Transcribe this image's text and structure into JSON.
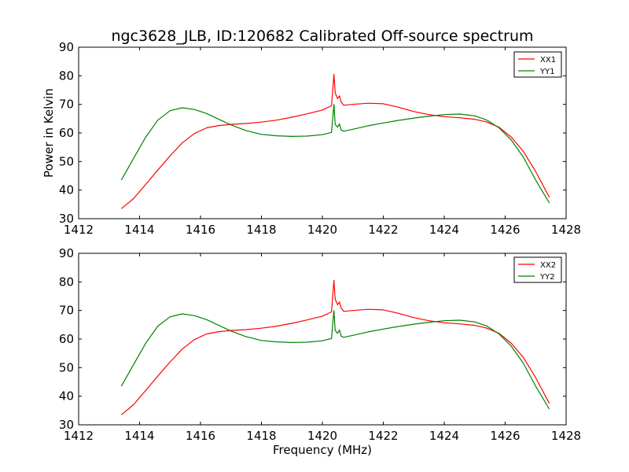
{
  "chart_data": [
    {
      "type": "line",
      "title": "ngc3628_JLB, ID:120682 Calibrated Off-source spectrum",
      "xlabel": "",
      "ylabel": "Power in Kelvin",
      "xlim": [
        1412,
        1428
      ],
      "ylim": [
        30,
        90
      ],
      "xticks": [
        "1412",
        "1414",
        "1416",
        "1418",
        "1420",
        "1422",
        "1424",
        "1426",
        "1428"
      ],
      "yticks": [
        "30",
        "40",
        "50",
        "60",
        "70",
        "80",
        "90"
      ],
      "legend": "top-right",
      "series": [
        {
          "name": "XX1",
          "color": "#ff0000",
          "x": [
            1413.4,
            1413.8,
            1414.2,
            1414.6,
            1415.0,
            1415.4,
            1415.8,
            1416.2,
            1416.6,
            1417.0,
            1417.5,
            1418.0,
            1418.5,
            1419.0,
            1419.5,
            1420.0,
            1420.3,
            1420.38,
            1420.42,
            1420.5,
            1420.56,
            1420.62,
            1420.7,
            1421.0,
            1421.5,
            1422.0,
            1422.5,
            1423.0,
            1423.5,
            1424.0,
            1424.5,
            1425.0,
            1425.4,
            1425.8,
            1426.2,
            1426.6,
            1427.0,
            1427.45
          ],
          "y": [
            33.5,
            37,
            42,
            47,
            52,
            56.5,
            59.8,
            61.8,
            62.6,
            63.0,
            63.3,
            63.8,
            64.5,
            65.5,
            66.7,
            68.0,
            69.5,
            80.5,
            74,
            72,
            73,
            70.8,
            69.7,
            70.0,
            70.4,
            70.2,
            69.0,
            67.5,
            66.4,
            65.7,
            65.3,
            64.8,
            63.8,
            62.0,
            58.5,
            53.5,
            46.5,
            37.5
          ]
        },
        {
          "name": "YY1",
          "color": "#008000",
          "x": [
            1413.4,
            1413.8,
            1414.2,
            1414.6,
            1415.0,
            1415.4,
            1415.8,
            1416.2,
            1416.6,
            1417.0,
            1417.5,
            1418.0,
            1418.5,
            1419.0,
            1419.5,
            1420.0,
            1420.3,
            1420.38,
            1420.42,
            1420.5,
            1420.56,
            1420.62,
            1420.7,
            1421.0,
            1421.5,
            1422.0,
            1422.5,
            1423.0,
            1423.5,
            1424.0,
            1424.5,
            1425.0,
            1425.4,
            1425.8,
            1426.2,
            1426.6,
            1427.0,
            1427.45
          ],
          "y": [
            43.5,
            51,
            58.5,
            64.5,
            67.8,
            68.8,
            68.2,
            66.8,
            64.8,
            62.8,
            60.8,
            59.5,
            59.0,
            58.8,
            58.9,
            59.4,
            60.2,
            70,
            63,
            62,
            63.2,
            61,
            60.6,
            61.3,
            62.5,
            63.5,
            64.4,
            65.2,
            65.9,
            66.4,
            66.6,
            66.0,
            64.5,
            61.8,
            57.5,
            51.5,
            43.5,
            35.5
          ]
        }
      ]
    },
    {
      "type": "line",
      "title": "",
      "xlabel": "Frequency (MHz)",
      "ylabel": "",
      "xlim": [
        1412,
        1428
      ],
      "ylim": [
        30,
        90
      ],
      "xticks": [
        "1412",
        "1414",
        "1416",
        "1418",
        "1420",
        "1422",
        "1424",
        "1426",
        "1428"
      ],
      "yticks": [
        "30",
        "40",
        "50",
        "60",
        "70",
        "80",
        "90"
      ],
      "legend": "top-right",
      "series": [
        {
          "name": "XX2",
          "color": "#ff0000",
          "x": [
            1413.4,
            1413.8,
            1414.2,
            1414.6,
            1415.0,
            1415.4,
            1415.8,
            1416.2,
            1416.6,
            1417.0,
            1417.5,
            1418.0,
            1418.5,
            1419.0,
            1419.5,
            1420.0,
            1420.3,
            1420.38,
            1420.42,
            1420.5,
            1420.56,
            1420.62,
            1420.7,
            1421.0,
            1421.5,
            1422.0,
            1422.5,
            1423.0,
            1423.5,
            1424.0,
            1424.5,
            1425.0,
            1425.4,
            1425.8,
            1426.2,
            1426.6,
            1427.0,
            1427.45
          ],
          "y": [
            33.5,
            37,
            42,
            47,
            52,
            56.5,
            59.8,
            61.8,
            62.6,
            63.0,
            63.3,
            63.8,
            64.5,
            65.5,
            66.7,
            68.0,
            69.5,
            80.5,
            74,
            72,
            73,
            70.8,
            69.7,
            70.0,
            70.4,
            70.2,
            69.0,
            67.5,
            66.4,
            65.7,
            65.3,
            64.8,
            63.8,
            62.0,
            58.5,
            53.5,
            46.5,
            37.5
          ]
        },
        {
          "name": "YY2",
          "color": "#008000",
          "x": [
            1413.4,
            1413.8,
            1414.2,
            1414.6,
            1415.0,
            1415.4,
            1415.8,
            1416.2,
            1416.6,
            1417.0,
            1417.5,
            1418.0,
            1418.5,
            1419.0,
            1419.5,
            1420.0,
            1420.3,
            1420.38,
            1420.42,
            1420.5,
            1420.56,
            1420.62,
            1420.7,
            1421.0,
            1421.5,
            1422.0,
            1422.5,
            1423.0,
            1423.5,
            1424.0,
            1424.5,
            1425.0,
            1425.4,
            1425.8,
            1426.2,
            1426.6,
            1427.0,
            1427.45
          ],
          "y": [
            43.5,
            51,
            58.5,
            64.5,
            67.8,
            68.8,
            68.2,
            66.8,
            64.8,
            62.8,
            60.8,
            59.5,
            59.0,
            58.8,
            58.9,
            59.4,
            60.2,
            70,
            63,
            62,
            63.2,
            61,
            60.6,
            61.3,
            62.5,
            63.5,
            64.4,
            65.2,
            65.9,
            66.4,
            66.6,
            66.0,
            64.5,
            61.8,
            57.5,
            51.5,
            43.5,
            35.5
          ]
        }
      ]
    }
  ]
}
